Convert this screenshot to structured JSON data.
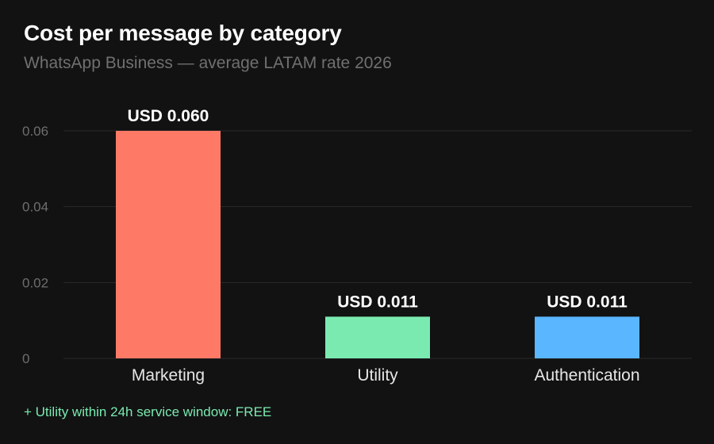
{
  "colors": {
    "background": "#121212",
    "title": "#ffffff",
    "subtitle": "#707070",
    "gridline": "#2a2a2a",
    "tick_label": "#6e6e6e",
    "category_label": "#e6e6e6",
    "data_label": "#ffffff",
    "footnote": "#7aeab1"
  },
  "footnote": "+ Utility within 24h service window: FREE",
  "chart_data": {
    "type": "bar",
    "title": "Cost per message by category",
    "subtitle": "WhatsApp Business — average LATAM rate 2026",
    "xlabel": "",
    "ylabel": "",
    "categories": [
      "Marketing",
      "Utility",
      "Authentication"
    ],
    "values": [
      0.06,
      0.011,
      0.011
    ],
    "data_labels": [
      "USD 0.060",
      "USD 0.011",
      "USD 0.011"
    ],
    "bar_colors": [
      "#ff7a66",
      "#7aeab1",
      "#5ab6ff"
    ],
    "ylim": [
      0,
      0.06
    ],
    "yticks": [
      0,
      0.02,
      0.04,
      0.06
    ],
    "ytick_labels": [
      "0",
      "0.02",
      "0.04",
      "0.06"
    ],
    "grid": true,
    "legend": "none"
  }
}
